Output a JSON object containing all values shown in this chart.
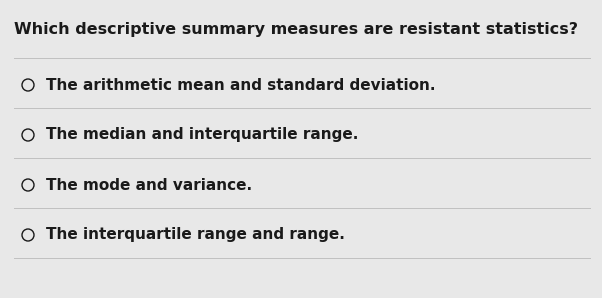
{
  "title": "Which descriptive summary measures are resistant statistics?",
  "options": [
    "The arithmetic mean and standard deviation.",
    "The median and interquartile range.",
    "The mode and variance.",
    "The interquartile range and range."
  ],
  "background_color": "#e8e8e8",
  "text_color": "#1a1a1a",
  "title_fontsize": 11.5,
  "option_fontsize": 11.0,
  "circle_color": "#1a1a1a",
  "line_color": "#c0c0c0",
  "line_width": 0.7
}
